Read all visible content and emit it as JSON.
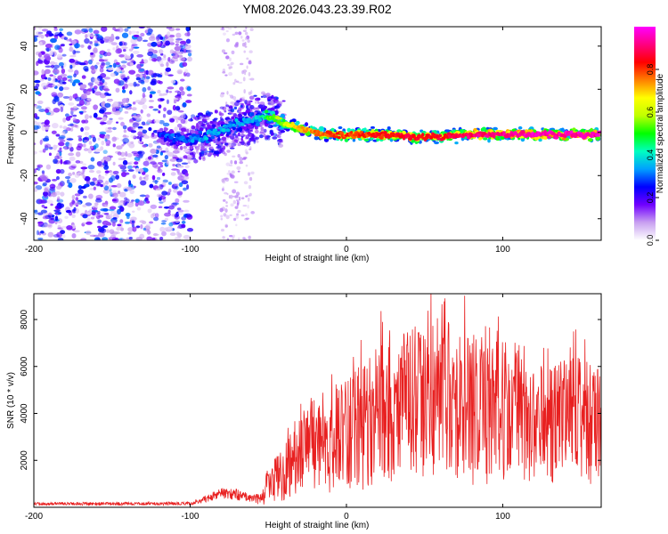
{
  "figure": {
    "title": "YM08.2026.043.23.39.R02"
  },
  "chart_data": [
    {
      "type": "heatmap",
      "title": "YM08.2026.043.23.39.R02",
      "xlabel": "Height of straight line (km)",
      "ylabel": "Frequency (Hz)",
      "xlim": [
        -200,
        163
      ],
      "ylim": [
        -50,
        49
      ],
      "xticks": [
        -200,
        -100,
        0,
        100
      ],
      "yticks": [
        40,
        20,
        0,
        -20,
        -40
      ],
      "colorbar": {
        "label": "Normalized spectral amplitude",
        "range": [
          0,
          1
        ],
        "ticks": [
          0.0,
          0.2,
          0.4,
          0.6,
          0.8
        ],
        "colors": [
          "#ffffff",
          "#c8a0f0",
          "#7000ff",
          "#0000ff",
          "#00a0ff",
          "#00ffc0",
          "#00ff00",
          "#c0ff00",
          "#ffff00",
          "#ff8000",
          "#ff0000",
          "#ff0080",
          "#ff00ff"
        ]
      },
      "ridge": {
        "x": [
          -120,
          -110,
          -100,
          -90,
          -80,
          -70,
          -60,
          -55,
          -50,
          -45,
          -40,
          -30,
          -20,
          -10,
          0,
          20,
          40,
          60,
          80,
          100,
          120,
          140,
          160
        ],
        "frequency": [
          -1,
          -3,
          -3,
          -2,
          1,
          4,
          6,
          7,
          8,
          6,
          4,
          2,
          0,
          -1,
          -1,
          -1,
          -2,
          -2,
          -1,
          -1,
          -1,
          -1,
          -1
        ],
        "amplitude": [
          0.25,
          0.3,
          0.3,
          0.35,
          0.35,
          0.35,
          0.35,
          0.4,
          0.5,
          0.55,
          0.6,
          0.7,
          0.75,
          0.8,
          0.8,
          0.82,
          0.85,
          0.85,
          0.9,
          0.92,
          0.95,
          0.95,
          0.95
        ]
      },
      "noise_band_x": [
        -200,
        -100
      ],
      "noise_streaks_x": [
        -80,
        -60
      ]
    },
    {
      "type": "line",
      "xlabel": "Height of straight line (km)",
      "ylabel": "SNR (10 * v/v)",
      "xlim": [
        -200,
        163
      ],
      "ylim": [
        0,
        9100
      ],
      "xticks": [
        -200,
        -100,
        0,
        100
      ],
      "yticks": [
        8000,
        6000,
        4000,
        2000
      ],
      "series": [
        {
          "name": "SNR",
          "color": "#e82020",
          "envelope_x": [
            -200,
            -150,
            -100,
            -90,
            -80,
            -70,
            -60,
            -55,
            -50,
            -40,
            -30,
            -20,
            -10,
            0,
            10,
            20,
            30,
            40,
            50,
            60,
            70,
            80,
            90,
            100,
            110,
            120,
            130,
            140,
            150,
            160,
            163
          ],
          "envelope_mean": [
            150,
            150,
            160,
            350,
            600,
            550,
            350,
            400,
            900,
            1500,
            2100,
            2600,
            2900,
            3200,
            3400,
            4100,
            4000,
            4300,
            4200,
            4800,
            4300,
            4300,
            4000,
            4100,
            4100,
            3800,
            3500,
            3800,
            3900,
            3400,
            3500
          ],
          "envelope_spread": [
            60,
            70,
            70,
            150,
            250,
            250,
            150,
            300,
            800,
            1200,
            1600,
            2000,
            2300,
            2500,
            2700,
            3200,
            3000,
            3400,
            3300,
            3800,
            3400,
            3400,
            3100,
            3000,
            3000,
            2700,
            2500,
            2600,
            2800,
            2500,
            2500
          ],
          "peak_value": 8900,
          "peak_x": 63
        }
      ]
    }
  ]
}
